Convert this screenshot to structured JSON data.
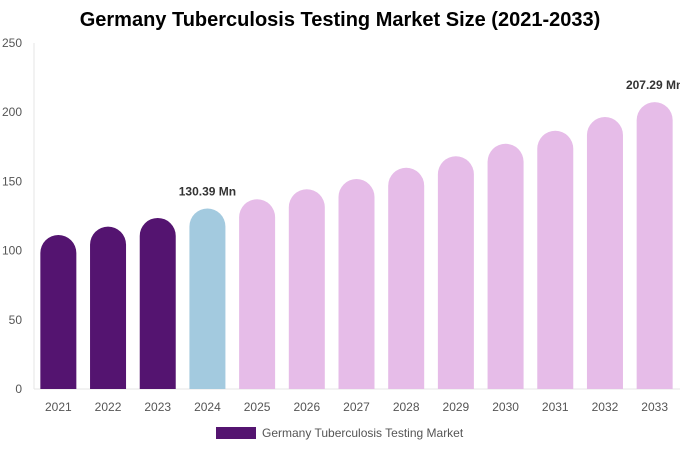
{
  "chart_data": {
    "type": "bar",
    "title": "Germany Tuberculosis Testing Market Size (2021-2033)",
    "categories": [
      "2021",
      "2022",
      "2023",
      "2024",
      "2025",
      "2026",
      "2027",
      "2028",
      "2029",
      "2030",
      "2031",
      "2032",
      "2033"
    ],
    "series": [
      {
        "name": "Germany Tuberculosis Testing Market",
        "values": [
          111.3,
          117.3,
          123.6,
          130.39,
          137.1,
          144.3,
          151.7,
          159.9,
          168.2,
          177.2,
          186.6,
          196.5,
          207.29
        ]
      }
    ],
    "data_labels": [
      {
        "category": "2024",
        "text": "130.39 Mn"
      },
      {
        "category": "2033",
        "text": "207.29 Mn"
      }
    ],
    "ylim": [
      0,
      250
    ],
    "yticks": [
      0,
      50,
      100,
      150,
      200,
      250
    ],
    "xlabel": "",
    "ylabel": "",
    "grid": false,
    "legend": "bottom",
    "colors": {
      "historical": "#541470",
      "base_year": "#a3cadf",
      "forecast": "#e6bce8"
    },
    "bar_colors": [
      "historical",
      "historical",
      "historical",
      "base_year",
      "forecast",
      "forecast",
      "forecast",
      "forecast",
      "forecast",
      "forecast",
      "forecast",
      "forecast",
      "forecast"
    ]
  }
}
